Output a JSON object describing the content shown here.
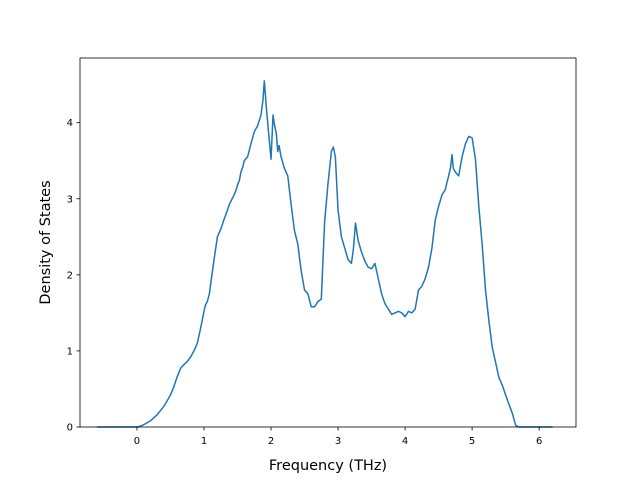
{
  "chart_data": {
    "type": "line",
    "title": "",
    "xlabel": "Frequency (THz)",
    "ylabel": "Density of States",
    "xlim": [
      -0.85,
      6.55
    ],
    "ylim": [
      0,
      4.85
    ],
    "xticks": [
      0,
      1,
      2,
      3,
      4,
      5,
      6
    ],
    "yticks": [
      0,
      1,
      2,
      3,
      4
    ],
    "grid": false,
    "legend": "none",
    "line_color": "#1f77b4",
    "series": [
      {
        "x": [
          -0.6,
          -0.3,
          0.0,
          0.05,
          0.1,
          0.2,
          0.3,
          0.4,
          0.5,
          0.55,
          0.6,
          0.65,
          0.7,
          0.75,
          0.8,
          0.85,
          0.9,
          0.95,
          1.0,
          1.02,
          1.05,
          1.08,
          1.1,
          1.15,
          1.2,
          1.25,
          1.3,
          1.35,
          1.38,
          1.42,
          1.45,
          1.48,
          1.5,
          1.53,
          1.55,
          1.58,
          1.6,
          1.65,
          1.7,
          1.75,
          1.8,
          1.85,
          1.88,
          1.9,
          1.93,
          1.96,
          2.0,
          2.03,
          2.05,
          2.08,
          2.1,
          2.12,
          2.15,
          2.2,
          2.25,
          2.3,
          2.35,
          2.4,
          2.45,
          2.5,
          2.55,
          2.6,
          2.65,
          2.7,
          2.75,
          2.8,
          2.85,
          2.9,
          2.93,
          2.96,
          3.0,
          3.05,
          3.1,
          3.15,
          3.2,
          3.23,
          3.26,
          3.3,
          3.35,
          3.4,
          3.45,
          3.5,
          3.55,
          3.6,
          3.65,
          3.7,
          3.75,
          3.8,
          3.85,
          3.9,
          3.95,
          4.0,
          4.05,
          4.1,
          4.15,
          4.2,
          4.25,
          4.3,
          4.35,
          4.4,
          4.45,
          4.5,
          4.55,
          4.6,
          4.62,
          4.65,
          4.68,
          4.7,
          4.72,
          4.75,
          4.8,
          4.85,
          4.9,
          4.95,
          5.0,
          5.05,
          5.1,
          5.15,
          5.2,
          5.25,
          5.3,
          5.35,
          5.4,
          5.45,
          5.5,
          5.55,
          5.6,
          5.65,
          5.7,
          5.8,
          6.0,
          6.2
        ],
        "values": [
          0,
          0,
          0,
          0.01,
          0.03,
          0.08,
          0.16,
          0.27,
          0.42,
          0.53,
          0.66,
          0.77,
          0.82,
          0.86,
          0.92,
          1.0,
          1.1,
          1.3,
          1.52,
          1.6,
          1.65,
          1.75,
          1.88,
          2.2,
          2.5,
          2.6,
          2.73,
          2.85,
          2.93,
          3.0,
          3.05,
          3.12,
          3.18,
          3.25,
          3.35,
          3.42,
          3.5,
          3.55,
          3.72,
          3.88,
          3.96,
          4.1,
          4.3,
          4.55,
          4.2,
          3.9,
          3.52,
          4.1,
          3.98,
          3.85,
          3.62,
          3.7,
          3.55,
          3.4,
          3.3,
          2.92,
          2.58,
          2.4,
          2.05,
          1.8,
          1.75,
          1.58,
          1.58,
          1.65,
          1.68,
          2.7,
          3.2,
          3.62,
          3.68,
          3.55,
          2.85,
          2.5,
          2.35,
          2.2,
          2.15,
          2.35,
          2.68,
          2.45,
          2.3,
          2.18,
          2.1,
          2.08,
          2.15,
          1.95,
          1.75,
          1.62,
          1.55,
          1.48,
          1.5,
          1.52,
          1.5,
          1.45,
          1.52,
          1.5,
          1.55,
          1.8,
          1.85,
          1.95,
          2.1,
          2.35,
          2.72,
          2.9,
          3.05,
          3.12,
          3.2,
          3.3,
          3.42,
          3.58,
          3.4,
          3.35,
          3.3,
          3.55,
          3.72,
          3.82,
          3.8,
          3.52,
          2.9,
          2.4,
          1.8,
          1.4,
          1.05,
          0.85,
          0.65,
          0.55,
          0.42,
          0.3,
          0.18,
          0.02,
          0,
          0,
          0,
          0
        ]
      }
    ]
  }
}
